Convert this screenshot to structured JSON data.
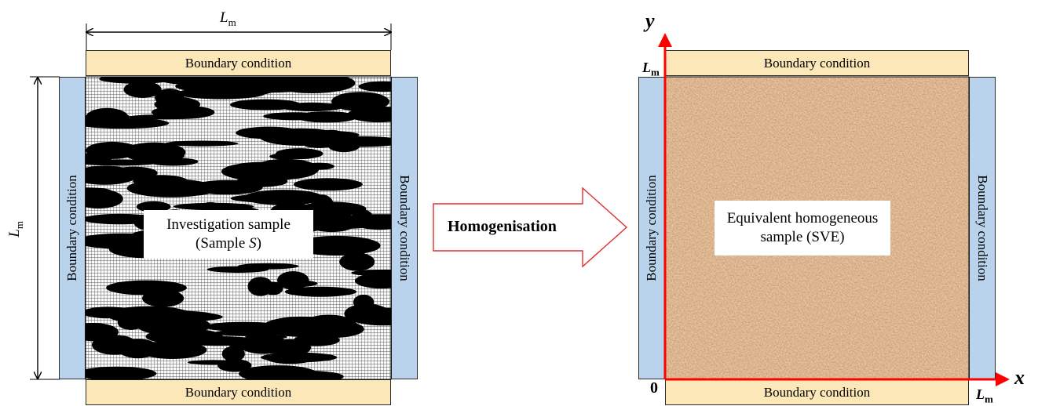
{
  "left": {
    "dim_top": {
      "symbol": "L",
      "sub": "m"
    },
    "dim_left": {
      "symbol": "L",
      "sub": "m"
    },
    "bc_top": "Boundary condition",
    "bc_bottom": "Boundary condition",
    "bc_left": "Boundary condition",
    "bc_right": "Boundary condition",
    "sample_line1": "Investigation sample",
    "sample_line2_pre": "(Sample ",
    "sample_line2_var": "S",
    "sample_line2_post": ")"
  },
  "arrow": {
    "label": "Homogenisation"
  },
  "right": {
    "axis_y": "y",
    "axis_x": "x",
    "origin": "0",
    "tick_y": {
      "symbol": "L",
      "sub": "m"
    },
    "tick_x": {
      "symbol": "L",
      "sub": "m"
    },
    "bc_top": "Boundary condition",
    "bc_bottom": "Boundary condition",
    "bc_left": "Boundary condition",
    "bc_right": "Boundary condition",
    "sample_line1": "Equivalent homogeneous",
    "sample_line2": "sample (SVE)"
  },
  "colors": {
    "bc_horizontal": "#fbe7b7",
    "bc_vertical": "#b9d3ec",
    "axis": "#ff0000",
    "pore_black": "#000000",
    "grid_light": "#f4f4f4",
    "soil": "#b77a46"
  }
}
